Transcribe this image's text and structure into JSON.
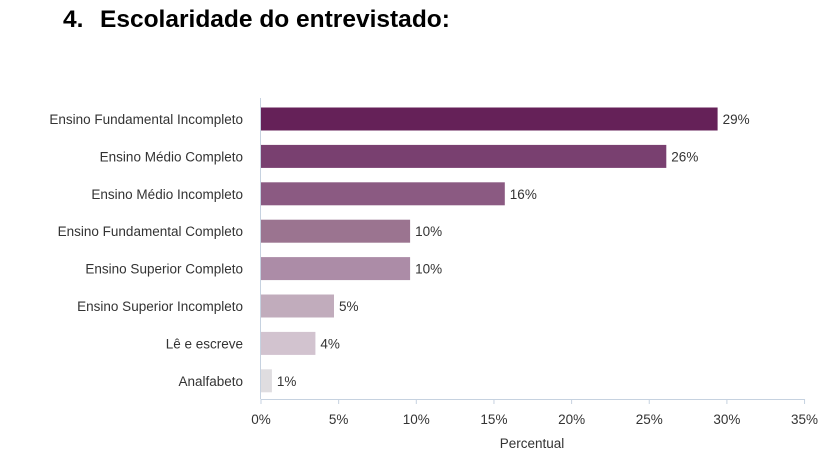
{
  "header": {
    "number": "4.",
    "title": "Escolaridade do entrevistado:"
  },
  "chart_data": {
    "type": "bar",
    "orientation": "horizontal",
    "title": "Escolaridade do entrevistado:",
    "categories": [
      "Ensino Fundamental Incompleto",
      "Ensino Médio Completo",
      "Ensino Médio Incompleto",
      "Ensino Fundamental Completo",
      "Ensino Superior Completo",
      "Ensino Superior Incompleto",
      "Lê e escreve",
      "Analfabeto"
    ],
    "values": [
      29.4,
      26.1,
      15.7,
      9.6,
      9.6,
      4.7,
      3.5,
      0.7
    ],
    "value_labels": [
      "29%",
      "26%",
      "16%",
      "10%",
      "10%",
      "5%",
      "4%",
      "1%"
    ],
    "colors": [
      "#652158",
      "#794070",
      "#8b5a82",
      "#9b7490",
      "#ac8ca7",
      "#c1acbc",
      "#d2c3cf",
      "#dfdde0"
    ],
    "xlabel": "Percentual",
    "ylabel": "",
    "xlim": [
      0,
      35
    ],
    "xticks": [
      0,
      5,
      10,
      15,
      20,
      25,
      30,
      35
    ],
    "xtick_labels": [
      "0%",
      "5%",
      "10%",
      "15%",
      "20%",
      "25%",
      "30%",
      "35%"
    ],
    "axis_color": "#c6d2e0",
    "grid": false
  }
}
